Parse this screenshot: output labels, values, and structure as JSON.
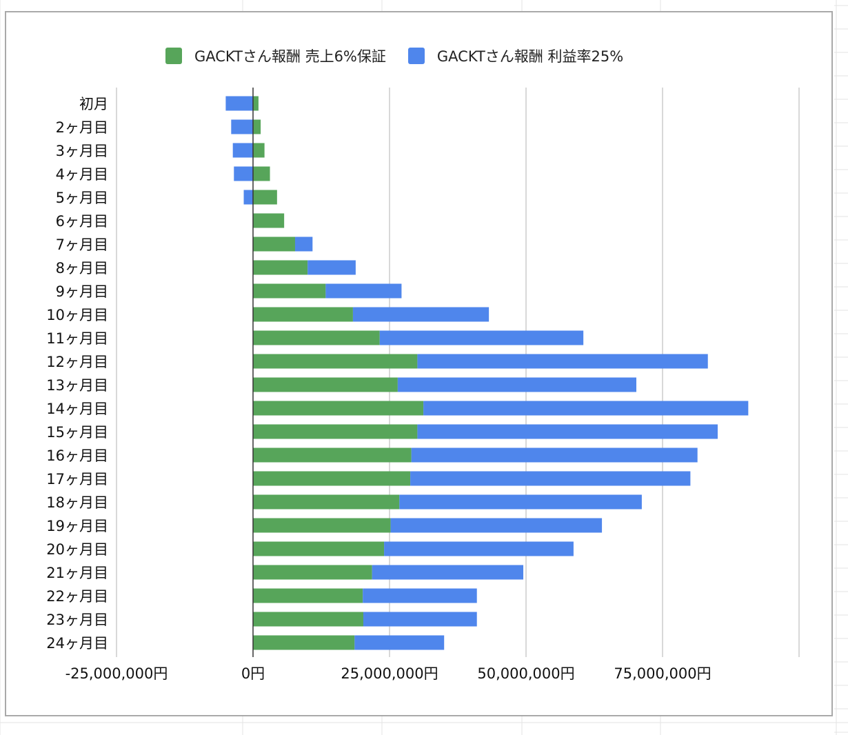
{
  "colors": {
    "series_green": "#57a55a",
    "series_blue": "#4f86ec",
    "gridline": "#cccccc",
    "zero_line": "#333333",
    "sheet_grid": "#e3e3e3"
  },
  "chart_data": {
    "type": "bar",
    "orientation": "horizontal",
    "stacked": true,
    "title": "",
    "xlabel": "",
    "ylabel": "",
    "legend_position": "top",
    "grid": true,
    "xlim": [
      -25000000,
      100000000
    ],
    "x_ticks": [
      {
        "value": -25000000,
        "label": "-25,000,000円"
      },
      {
        "value": 0,
        "label": "0円"
      },
      {
        "value": 25000000,
        "label": "25,000,000円"
      },
      {
        "value": 50000000,
        "label": "50,000,000円"
      },
      {
        "value": 75000000,
        "label": "75,000,000円"
      }
    ],
    "categories": [
      "初月",
      "2ヶ月目",
      "3ヶ月目",
      "4ヶ月目",
      "5ヶ月目",
      "6ヶ月目",
      "7ヶ月目",
      "8ヶ月目",
      "9ヶ月目",
      "10ヶ月目",
      "11ヶ月目",
      "12ヶ月目",
      "13ヶ月目",
      "14ヶ月目",
      "15ヶ月目",
      "16ヶ月目",
      "17ヶ月目",
      "18ヶ月目",
      "19ヶ月目",
      "20ヶ月目",
      "21ヶ月目",
      "22ヶ月目",
      "23ヶ月目",
      "24ヶ月目"
    ],
    "series": [
      {
        "name": "GACKTさん報酬 売上6%保証",
        "color": "#57a55a",
        "values": [
          1000000,
          1400000,
          2100000,
          3100000,
          4400000,
          5700000,
          7700000,
          10000000,
          13300000,
          18300000,
          23200000,
          30100000,
          26500000,
          31200000,
          30100000,
          29000000,
          28800000,
          26800000,
          25200000,
          24000000,
          21800000,
          20100000,
          20200000,
          18600000
        ]
      },
      {
        "name": "GACKTさん報酬 利益率25%",
        "color": "#4f86ec",
        "values": [
          -5000000,
          -4000000,
          -3700000,
          -3500000,
          -1700000,
          0,
          3200000,
          8800000,
          13900000,
          24900000,
          37300000,
          53200000,
          43700000,
          59500000,
          55000000,
          52400000,
          51300000,
          44400000,
          38700000,
          34700000,
          27700000,
          20900000,
          20800000,
          16400000
        ]
      }
    ]
  }
}
